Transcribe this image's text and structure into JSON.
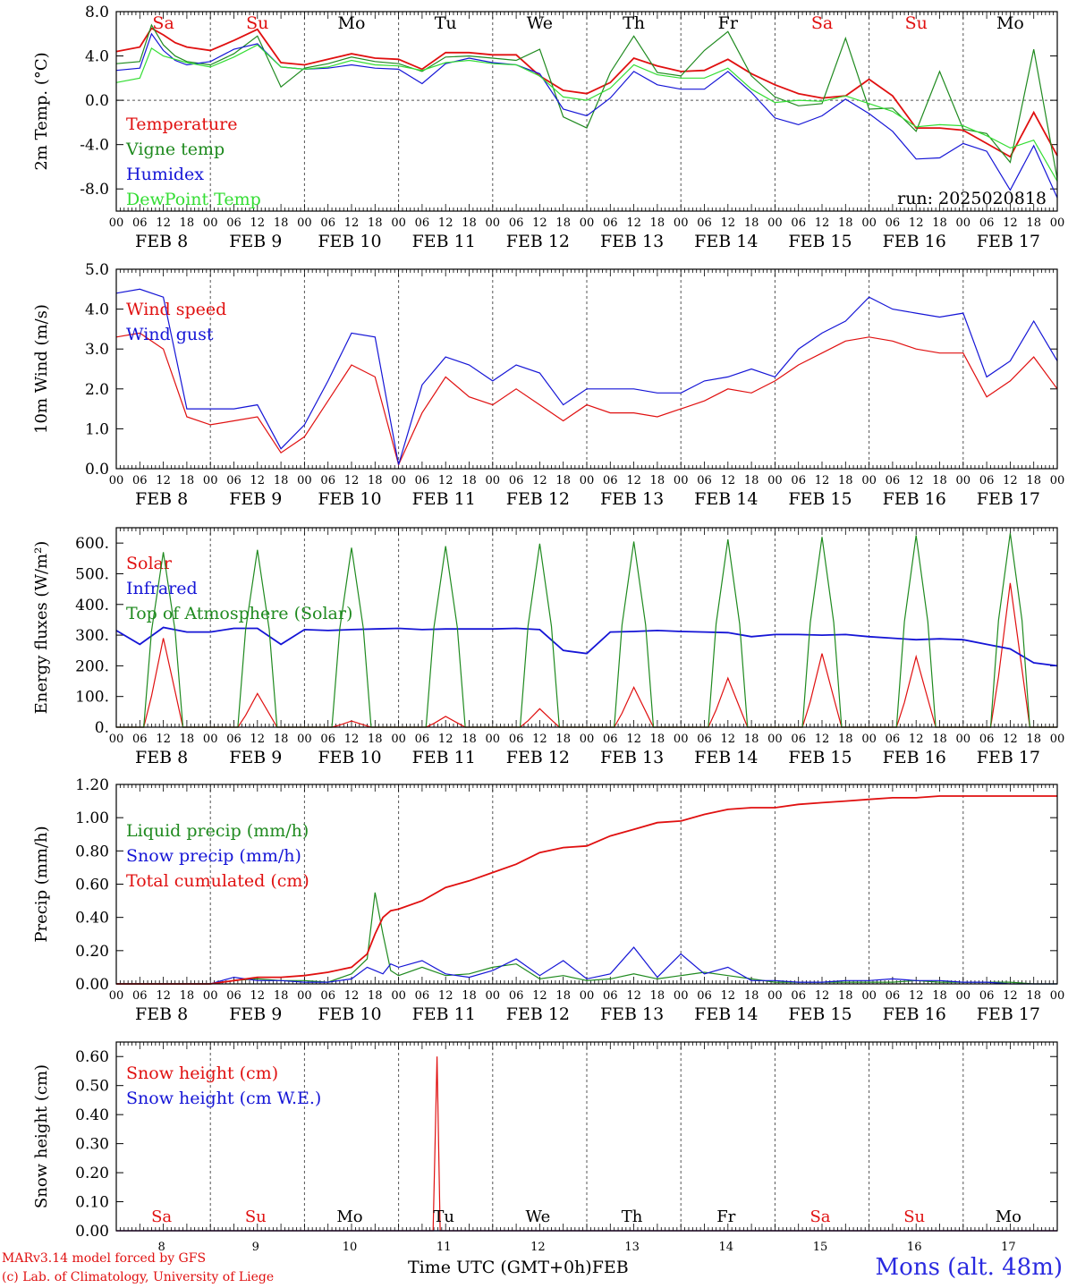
{
  "colors": {
    "red": "#e01010",
    "green": "#1f8a1f",
    "blue": "#1515d6",
    "lightgreen": "#33dd33",
    "axis": "#000000",
    "grid": "#555555"
  },
  "footer": {
    "model": "MARv3.14 model forced by GFS",
    "lab": "(c) Lab. of Climatology, University of Liege",
    "xlabel": "Time UTC (GMT+0h)",
    "xlabel_month": "FEB",
    "station": "Mons (alt. 48m)"
  },
  "chart_data": [
    {
      "type": "line",
      "ylabel": "2m Temp. (°C)",
      "ylim": [
        -10,
        8
      ],
      "yticks": [
        -8,
        -4,
        0,
        4,
        8
      ],
      "ytick_labels": [
        "-8.0",
        "-4.0",
        "0.0",
        "4.0",
        "8.0"
      ],
      "zero_line": true,
      "annotation": "run: 2025020818",
      "top_day_labels": [
        "Sa",
        "Su",
        "Mo",
        "Tu",
        "We",
        "Th",
        "Fr",
        "Sa",
        "Su",
        "Mo"
      ],
      "top_day_colors": [
        "#e01010",
        "#e01010",
        "#000000",
        "#000000",
        "#000000",
        "#000000",
        "#000000",
        "#e01010",
        "#e01010",
        "#000000"
      ],
      "hour_labels": [
        "00",
        "06",
        "12",
        "18"
      ],
      "date_labels": [
        "FEB 8",
        "FEB 9",
        "FEB 10",
        "FEB 11",
        "FEB 12",
        "FEB 13",
        "FEB 14",
        "FEB 15",
        "FEB 16",
        "FEB 17"
      ],
      "legend_position": "top-left",
      "x_hours": [
        0,
        6,
        9,
        12,
        15,
        18,
        24,
        30,
        36,
        42,
        48,
        54,
        60,
        66,
        72,
        78,
        84,
        90,
        96,
        102,
        108,
        114,
        120,
        126,
        132,
        138,
        144,
        150,
        156,
        162,
        168,
        174,
        180,
        186,
        192,
        198,
        204,
        210,
        216,
        222,
        228,
        234,
        240
      ],
      "series": [
        {
          "name": "Temperature",
          "color": "#e01010",
          "values": [
            4.4,
            4.8,
            6.5,
            5.9,
            5.2,
            4.8,
            4.5,
            5.4,
            6.4,
            3.4,
            3.2,
            3.7,
            4.2,
            3.8,
            3.7,
            2.8,
            4.3,
            4.3,
            4.1,
            4.1,
            2.2,
            0.9,
            0.6,
            1.6,
            3.8,
            3.1,
            2.6,
            2.7,
            3.7,
            2.4,
            1.4,
            0.6,
            0.2,
            0.4,
            1.9,
            0.4,
            -2.5,
            -2.5,
            -2.7,
            -3.9,
            -5.1,
            -1.1,
            -5.0
          ]
        },
        {
          "name": "Vigne temp",
          "color": "#1f8a1f",
          "values": [
            3.3,
            3.5,
            6.8,
            5.0,
            4.0,
            3.5,
            3.2,
            4.2,
            5.8,
            1.2,
            2.9,
            3.3,
            3.9,
            3.5,
            3.3,
            2.6,
            3.9,
            4.0,
            3.8,
            3.6,
            4.6,
            -1.5,
            -2.5,
            2.5,
            5.8,
            2.5,
            2.2,
            4.5,
            6.2,
            2.2,
            0.3,
            -0.5,
            -0.3,
            5.6,
            -0.8,
            -0.7,
            -2.8,
            2.6,
            -2.6,
            -3.0,
            -5.6,
            4.6,
            -7.1
          ]
        },
        {
          "name": "Humidex",
          "color": "#1515d6",
          "values": [
            2.7,
            2.9,
            6.0,
            4.5,
            3.6,
            3.2,
            3.5,
            4.6,
            5.1,
            3.0,
            2.8,
            2.9,
            3.2,
            2.9,
            2.8,
            1.5,
            3.3,
            3.8,
            3.4,
            3.2,
            2.4,
            -0.8,
            -1.4,
            0.2,
            2.6,
            1.4,
            1.0,
            1.0,
            2.6,
            0.7,
            -1.6,
            -2.2,
            -1.4,
            0.1,
            -1.2,
            -2.8,
            -5.3,
            -5.2,
            -3.9,
            -4.6,
            -8.1,
            -4.1,
            -8.8
          ]
        },
        {
          "name": "DewPoint Temp",
          "color": "#33dd33",
          "values": [
            1.6,
            2.0,
            4.7,
            4.0,
            3.7,
            3.4,
            3.0,
            3.9,
            5.0,
            3.0,
            2.8,
            3.0,
            3.6,
            3.2,
            3.1,
            2.7,
            3.4,
            3.6,
            3.3,
            3.2,
            2.2,
            0.3,
            0.0,
            1.1,
            3.2,
            2.3,
            2.0,
            2.0,
            2.9,
            1.0,
            -0.2,
            0.0,
            -0.1,
            0.4,
            -0.3,
            -1.0,
            -2.4,
            -2.2,
            -2.3,
            -3.2,
            -4.3,
            -3.6,
            -7.3
          ]
        }
      ]
    },
    {
      "type": "line",
      "ylabel": "10m Wind (m/s)",
      "ylim": [
        0,
        5
      ],
      "yticks": [
        0,
        1,
        2,
        3,
        4,
        5
      ],
      "ytick_labels": [
        "0.0",
        "1.0",
        "2.0",
        "3.0",
        "4.0",
        "5.0"
      ],
      "hour_labels": [
        "00",
        "06",
        "12",
        "18"
      ],
      "date_labels": [
        "FEB 8",
        "FEB 9",
        "FEB 10",
        "FEB 11",
        "FEB 12",
        "FEB 13",
        "FEB 14",
        "FEB 15",
        "FEB 16",
        "FEB 17"
      ],
      "legend_position": "top-left",
      "x_hours": [
        0,
        6,
        12,
        18,
        24,
        30,
        36,
        42,
        48,
        54,
        60,
        66,
        72,
        78,
        84,
        90,
        96,
        102,
        108,
        114,
        120,
        126,
        132,
        138,
        144,
        150,
        156,
        162,
        168,
        174,
        180,
        186,
        192,
        198,
        204,
        210,
        216,
        222,
        228,
        234,
        240
      ],
      "series": [
        {
          "name": "Wind speed",
          "color": "#e01010",
          "values": [
            3.3,
            3.4,
            3.0,
            1.3,
            1.1,
            1.2,
            1.3,
            0.4,
            0.8,
            1.7,
            2.6,
            2.3,
            0.1,
            1.4,
            2.3,
            1.8,
            1.6,
            2.0,
            1.6,
            1.2,
            1.6,
            1.4,
            1.4,
            1.3,
            1.5,
            1.7,
            2.0,
            1.9,
            2.2,
            2.6,
            2.9,
            3.2,
            3.3,
            3.2,
            3.0,
            2.9,
            2.9,
            1.8,
            2.2,
            2.8,
            2.0
          ]
        },
        {
          "name": "Wind gust",
          "color": "#1515d6",
          "values": [
            4.4,
            4.5,
            4.3,
            1.5,
            1.5,
            1.5,
            1.6,
            0.5,
            1.1,
            2.2,
            3.4,
            3.3,
            0.1,
            2.1,
            2.8,
            2.6,
            2.2,
            2.6,
            2.4,
            1.6,
            2.0,
            2.0,
            2.0,
            1.9,
            1.9,
            2.2,
            2.3,
            2.5,
            2.3,
            3.0,
            3.4,
            3.7,
            4.3,
            4.0,
            3.9,
            3.8,
            3.9,
            2.3,
            2.7,
            3.7,
            2.7
          ]
        }
      ]
    },
    {
      "type": "line",
      "ylabel": "Energy fluxes (W/m²)",
      "ylim": [
        0,
        650
      ],
      "yticks": [
        0,
        100,
        200,
        300,
        400,
        500,
        600
      ],
      "ytick_labels": [
        "0.",
        "100.",
        "200.",
        "300.",
        "400.",
        "500.",
        "600."
      ],
      "hour_labels": [
        "00",
        "06",
        "12",
        "18"
      ],
      "date_labels": [
        "FEB 8",
        "FEB 9",
        "FEB 10",
        "FEB 11",
        "FEB 12",
        "FEB 13",
        "FEB 14",
        "FEB 15",
        "FEB 16",
        "FEB 17"
      ],
      "legend_position": "top-left",
      "diurnal_hours": [
        0,
        7,
        9,
        12,
        15,
        17,
        24
      ],
      "series": [
        {
          "name": "Solar",
          "color": "#e01010",
          "day_peaks": [
            290,
            110,
            20,
            35,
            60,
            130,
            160,
            240,
            230,
            470
          ]
        },
        {
          "name": "Infrared",
          "color": "#1515d6",
          "x_hours": [
            0,
            6,
            12,
            18,
            24,
            30,
            36,
            42,
            48,
            54,
            60,
            66,
            72,
            78,
            84,
            90,
            96,
            102,
            108,
            114,
            120,
            126,
            132,
            138,
            144,
            150,
            156,
            162,
            168,
            174,
            180,
            186,
            192,
            198,
            204,
            210,
            216,
            222,
            228,
            234,
            240
          ],
          "values": [
            315,
            270,
            325,
            310,
            310,
            322,
            322,
            270,
            318,
            315,
            318,
            320,
            322,
            318,
            320,
            320,
            320,
            322,
            318,
            250,
            240,
            310,
            312,
            315,
            312,
            310,
            308,
            295,
            302,
            302,
            300,
            302,
            295,
            290,
            285,
            288,
            285,
            270,
            255,
            210,
            200
          ]
        },
        {
          "name": "Top of Atmosphere (Solar)",
          "color": "#1f8a1f",
          "day_peaks": [
            570,
            578,
            585,
            590,
            598,
            605,
            612,
            620,
            625,
            632
          ]
        }
      ]
    },
    {
      "type": "line",
      "ylabel": "Precip (mm/h)",
      "ylim": [
        0,
        1.2
      ],
      "yticks": [
        0,
        0.2,
        0.4,
        0.6,
        0.8,
        1.0,
        1.2
      ],
      "ytick_labels": [
        "0.00",
        "0.20",
        "0.40",
        "0.60",
        "0.80",
        "1.00",
        "1.20"
      ],
      "hour_labels": [
        "00",
        "06",
        "12",
        "18"
      ],
      "date_labels": [
        "FEB 8",
        "FEB 9",
        "FEB 10",
        "FEB 11",
        "FEB 12",
        "FEB 13",
        "FEB 14",
        "FEB 15",
        "FEB 16",
        "FEB 17"
      ],
      "legend_position": "top-left",
      "x_hours": [
        0,
        6,
        12,
        18,
        24,
        30,
        36,
        42,
        48,
        54,
        60,
        64,
        66,
        68,
        70,
        72,
        78,
        84,
        90,
        96,
        102,
        108,
        114,
        120,
        126,
        132,
        138,
        144,
        150,
        156,
        162,
        168,
        174,
        180,
        186,
        192,
        198,
        204,
        210,
        216,
        222,
        228,
        234,
        240
      ],
      "series": [
        {
          "name": "Liquid precip (mm/h)",
          "color": "#1f8a1f",
          "values": [
            0,
            0,
            0,
            0,
            0,
            0.02,
            0.03,
            0.02,
            0.02,
            0.01,
            0.06,
            0.15,
            0.55,
            0.3,
            0.08,
            0.05,
            0.1,
            0.05,
            0.06,
            0.1,
            0.12,
            0.03,
            0.05,
            0.02,
            0.03,
            0.06,
            0.03,
            0.05,
            0.07,
            0.05,
            0.03,
            0.01,
            0.01,
            0.01,
            0.01,
            0.01,
            0.01,
            0.02,
            0.01,
            0.01,
            0.01,
            0.01,
            0.0,
            0.0
          ]
        },
        {
          "name": "Snow precip (mm/h)",
          "color": "#1515d6",
          "values": [
            0,
            0,
            0,
            0,
            0,
            0.04,
            0.02,
            0.02,
            0.01,
            0.01,
            0.03,
            0.1,
            0.08,
            0.06,
            0.12,
            0.1,
            0.14,
            0.06,
            0.04,
            0.08,
            0.15,
            0.05,
            0.14,
            0.03,
            0.06,
            0.22,
            0.04,
            0.18,
            0.06,
            0.1,
            0.02,
            0.02,
            0.01,
            0.01,
            0.02,
            0.02,
            0.03,
            0.02,
            0.02,
            0.01,
            0.01,
            0.0,
            0.0,
            0.0
          ]
        },
        {
          "name": "Total cumulated (cm)",
          "color": "#e01010",
          "values": [
            0,
            0,
            0,
            0,
            0,
            0.02,
            0.04,
            0.04,
            0.05,
            0.07,
            0.1,
            0.18,
            0.3,
            0.4,
            0.44,
            0.45,
            0.5,
            0.58,
            0.62,
            0.67,
            0.72,
            0.79,
            0.82,
            0.83,
            0.89,
            0.93,
            0.97,
            0.98,
            1.02,
            1.05,
            1.06,
            1.06,
            1.08,
            1.09,
            1.1,
            1.11,
            1.12,
            1.12,
            1.13,
            1.13,
            1.13,
            1.13,
            1.13,
            1.13
          ]
        }
      ]
    },
    {
      "type": "line",
      "ylabel": "Snow height (cm)",
      "ylim": [
        0,
        0.65
      ],
      "yticks": [
        0,
        0.1,
        0.2,
        0.3,
        0.4,
        0.5,
        0.6
      ],
      "ytick_labels": [
        "0.00",
        "0.10",
        "0.20",
        "0.30",
        "0.40",
        "0.50",
        "0.60"
      ],
      "bottom_day_labels": [
        "Sa",
        "Su",
        "Mo",
        "Tu",
        "We",
        "Th",
        "Fr",
        "Sa",
        "Su",
        "Mo"
      ],
      "bottom_day_colors": [
        "#e01010",
        "#e01010",
        "#000000",
        "#000000",
        "#000000",
        "#000000",
        "#000000",
        "#e01010",
        "#e01010",
        "#000000"
      ],
      "bottom_date_labels": [
        "8",
        "9",
        "10",
        "11",
        "12",
        "13",
        "14",
        "15",
        "16",
        "17"
      ],
      "legend_position": "top-left",
      "x_hours": [
        0,
        80,
        80.8,
        81.8,
        82.6,
        240
      ],
      "series": [
        {
          "name": "Snow height (cm)",
          "color": "#e01010",
          "values": [
            0,
            0,
            0,
            0.6,
            0,
            0
          ]
        },
        {
          "name": "Snow height (cm W.E.)",
          "color": "#1515d6",
          "values": [
            0,
            0,
            0,
            0,
            0,
            0
          ]
        }
      ]
    }
  ]
}
